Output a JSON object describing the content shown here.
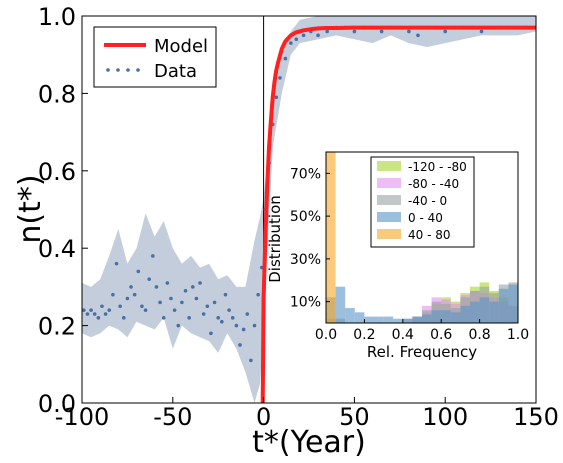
{
  "chart_data": [
    {
      "type": "line",
      "xlabel": "t*(Year)",
      "ylabel": "n(t*)",
      "xlim": [
        -100,
        150
      ],
      "ylim": [
        0,
        1.0
      ],
      "x_ticks": [
        "-100",
        "-50",
        "0",
        "50",
        "100",
        "150"
      ],
      "y_ticks": [
        "0.0",
        "0.2",
        "0.4",
        "0.6",
        "0.8",
        "1.0"
      ],
      "vertical_line_at": 0,
      "legend": {
        "position": "top-left",
        "entries": [
          "Model",
          "Data"
        ]
      },
      "series": [
        {
          "name": "Model",
          "style": "line",
          "color": "#ff2020",
          "x": [
            -0.5,
            0,
            1,
            2,
            3,
            4,
            5,
            6,
            7,
            8,
            10,
            12,
            15,
            18,
            22,
            26,
            30,
            35,
            40,
            50,
            60,
            80,
            100,
            125,
            150
          ],
          "y": [
            0.0,
            0.27,
            0.43,
            0.56,
            0.66,
            0.73,
            0.79,
            0.83,
            0.86,
            0.88,
            0.915,
            0.935,
            0.95,
            0.958,
            0.963,
            0.966,
            0.968,
            0.969,
            0.969,
            0.97,
            0.97,
            0.97,
            0.97,
            0.97,
            0.97
          ]
        },
        {
          "name": "Data",
          "style": "points",
          "color": "#4a6fa5",
          "x": [
            -99,
            -97,
            -95,
            -93,
            -91,
            -89,
            -87,
            -85,
            -83,
            -81,
            -79,
            -77,
            -75,
            -73,
            -71,
            -69,
            -67,
            -65,
            -63,
            -61,
            -59,
            -57,
            -55,
            -53,
            -51,
            -49,
            -47,
            -45,
            -43,
            -41,
            -39,
            -37,
            -35,
            -33,
            -31,
            -29,
            -27,
            -25,
            -23,
            -21,
            -19,
            -17,
            -15,
            -13,
            -11,
            -9,
            -7,
            -5,
            -3,
            -1,
            1,
            3,
            5,
            7,
            9,
            12,
            15,
            18,
            22,
            26,
            30,
            35,
            40,
            45,
            50,
            55,
            60,
            65,
            70,
            75,
            80,
            85,
            90,
            95,
            100,
            105,
            110,
            115,
            120,
            125,
            130,
            135,
            140,
            145,
            150
          ],
          "y": [
            0.24,
            0.23,
            0.24,
            0.23,
            0.22,
            0.25,
            0.23,
            0.24,
            0.28,
            0.36,
            0.25,
            0.22,
            0.27,
            0.3,
            0.28,
            0.34,
            0.25,
            0.24,
            0.32,
            0.38,
            0.3,
            0.26,
            0.22,
            0.31,
            0.27,
            0.24,
            0.2,
            0.26,
            0.29,
            0.22,
            0.3,
            0.27,
            0.31,
            0.23,
            0.25,
            0.18,
            0.26,
            0.22,
            0.21,
            0.28,
            0.24,
            0.22,
            0.2,
            0.15,
            0.19,
            0.23,
            0.11,
            0.2,
            0.28,
            0.35,
            0.5,
            0.62,
            0.72,
            0.79,
            0.84,
            0.89,
            0.93,
            0.94,
            0.95,
            0.96,
            0.95,
            0.96,
            0.97,
            0.97,
            0.96,
            0.97,
            0.97,
            0.96,
            0.97,
            0.97,
            0.96,
            0.95,
            0.97,
            0.97,
            0.96,
            0.97,
            0.97,
            0.97,
            0.96,
            0.97,
            0.97,
            0.97,
            0.97,
            0.97,
            0.97
          ]
        }
      ],
      "uncertainty_band": {
        "color": "#b8c4d6",
        "x": [
          -100,
          -95,
          -90,
          -85,
          -80,
          -75,
          -70,
          -65,
          -60,
          -55,
          -50,
          -45,
          -40,
          -35,
          -30,
          -25,
          -20,
          -15,
          -10,
          -5,
          -2,
          0,
          5,
          10,
          15,
          20,
          30,
          40,
          50,
          60,
          70,
          80,
          90,
          100,
          110,
          120,
          130,
          140,
          150
        ],
        "low": [
          0.18,
          0.17,
          0.18,
          0.2,
          0.19,
          0.17,
          0.21,
          0.2,
          0.19,
          0.22,
          0.14,
          0.2,
          0.18,
          0.17,
          0.16,
          0.13,
          0.18,
          0.14,
          0.08,
          0.0,
          0.05,
          0.2,
          0.66,
          0.8,
          0.9,
          0.93,
          0.94,
          0.95,
          0.94,
          0.93,
          0.95,
          0.93,
          0.92,
          0.93,
          0.94,
          0.95,
          0.95,
          0.95,
          0.96
        ],
        "high": [
          0.31,
          0.3,
          0.32,
          0.38,
          0.45,
          0.36,
          0.4,
          0.49,
          0.43,
          0.47,
          0.4,
          0.36,
          0.38,
          0.35,
          0.36,
          0.32,
          0.33,
          0.3,
          0.3,
          0.42,
          0.48,
          0.53,
          0.78,
          0.9,
          0.96,
          0.99,
          1.0,
          1.0,
          1.0,
          1.0,
          1.0,
          1.0,
          1.0,
          1.0,
          1.0,
          1.0,
          1.0,
          1.0,
          1.0
        ]
      }
    },
    {
      "type": "bar",
      "xlabel": "Rel. Frequency",
      "ylabel": "Distribution",
      "xlim": [
        0,
        1.0
      ],
      "ylim": [
        0,
        0.8
      ],
      "x_ticks": [
        "0.0",
        "0.2",
        "0.4",
        "0.6",
        "0.8",
        "1.0"
      ],
      "y_ticks": [
        "10%",
        "30%",
        "50%",
        "70%"
      ],
      "legend": {
        "position": "top-right",
        "entries": [
          "-120 - -80",
          "-80 - -40",
          "-40 - 0",
          "0 - 40",
          "40 - 80"
        ]
      },
      "bin_edges": [
        0.0,
        0.05,
        0.1,
        0.15,
        0.2,
        0.25,
        0.3,
        0.35,
        0.4,
        0.45,
        0.5,
        0.55,
        0.6,
        0.65,
        0.7,
        0.75,
        0.8,
        0.85,
        0.9,
        0.95,
        1.0
      ],
      "series": [
        {
          "name": "-120 - -80",
          "color": "#a5d62f",
          "values": [
            0.0,
            0.0,
            0.0,
            0.0,
            0.0,
            0.0,
            0.0,
            0.0,
            0.0,
            0.02,
            0.05,
            0.09,
            0.12,
            0.1,
            0.14,
            0.17,
            0.19,
            0.15,
            0.12,
            0.08
          ]
        },
        {
          "name": "-80 - -40",
          "color": "#e38ff0",
          "values": [
            0.0,
            0.0,
            0.0,
            0.0,
            0.0,
            0.0,
            0.0,
            0.0,
            0.0,
            0.03,
            0.08,
            0.12,
            0.11,
            0.09,
            0.13,
            0.15,
            0.14,
            0.12,
            0.1,
            0.08
          ]
        },
        {
          "name": "-40 - 0",
          "color": "#9aa2a4",
          "values": [
            0.02,
            0.02,
            0.0,
            0.0,
            0.0,
            0.0,
            0.0,
            0.0,
            0.02,
            0.03,
            0.06,
            0.1,
            0.09,
            0.07,
            0.12,
            0.15,
            0.17,
            0.14,
            0.18,
            0.19
          ]
        },
        {
          "name": "0 - 40",
          "color": "#5b95c8",
          "values": [
            0.12,
            0.17,
            0.07,
            0.05,
            0.03,
            0.03,
            0.03,
            0.02,
            0.02,
            0.03,
            0.04,
            0.06,
            0.06,
            0.05,
            0.08,
            0.1,
            0.12,
            0.1,
            0.16,
            0.18
          ]
        },
        {
          "name": "40 - 80",
          "color": "#f5a623",
          "values": [
            0.8,
            0.0,
            0.0,
            0.0,
            0.0,
            0.0,
            0.0,
            0.0,
            0.0,
            0.0,
            0.0,
            0.0,
            0.0,
            0.0,
            0.0,
            0.0,
            0.0,
            0.0,
            0.0,
            0.0
          ]
        }
      ]
    }
  ]
}
